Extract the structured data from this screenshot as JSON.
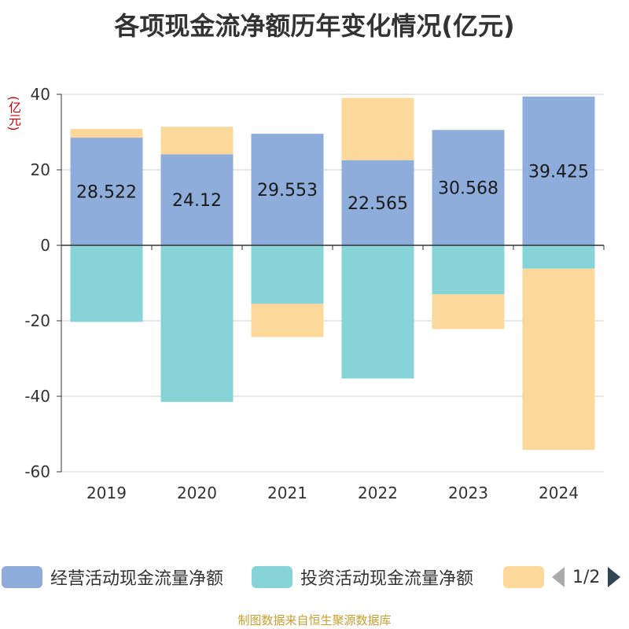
{
  "chart_data": {
    "type": "bar",
    "stacked": true,
    "title": "各项现金流净额历年变化情况(亿元)",
    "ylabel": "(亿元)",
    "xlabel": "",
    "ylim": [
      -60,
      40
    ],
    "yticks": [
      40,
      20,
      0,
      -20,
      -40,
      -60
    ],
    "categories": [
      "2019",
      "2020",
      "2021",
      "2022",
      "2023",
      "2024"
    ],
    "series": [
      {
        "name": "经营活动现金流量净额",
        "color": "#8eaddb",
        "values": [
          28.522,
          24.12,
          29.553,
          22.565,
          30.568,
          39.425
        ],
        "labels": [
          "28.522",
          "24.12",
          "29.553",
          "22.565",
          "30.568",
          "39.425"
        ]
      },
      {
        "name": "投资活动现金流量净额",
        "color": "#86d4d8",
        "values": [
          -20.3,
          -41.5,
          -15.5,
          -35.3,
          -13.0,
          -6.2
        ]
      },
      {
        "name": "",
        "color": "#fdd89b",
        "values": [
          2.3,
          7.3,
          -8.8,
          16.5,
          -9.2,
          -48.0
        ]
      }
    ],
    "legend_position": "bottom"
  },
  "legend": {
    "items": [
      {
        "label": "经营活动现金流量净额",
        "color": "#8eaddb"
      },
      {
        "label": "投资活动现金流量净额",
        "color": "#86d4d8"
      },
      {
        "label": "",
        "color": "#fdd89b"
      }
    ],
    "pager": {
      "text": "1/2",
      "prev_icon": "triangle-left-icon",
      "next_icon": "triangle-right-icon",
      "prev_color": "#aaaaaa",
      "next_color": "#2f4554"
    }
  },
  "footer": {
    "text": "制图数据来自恒生聚源数据库"
  }
}
